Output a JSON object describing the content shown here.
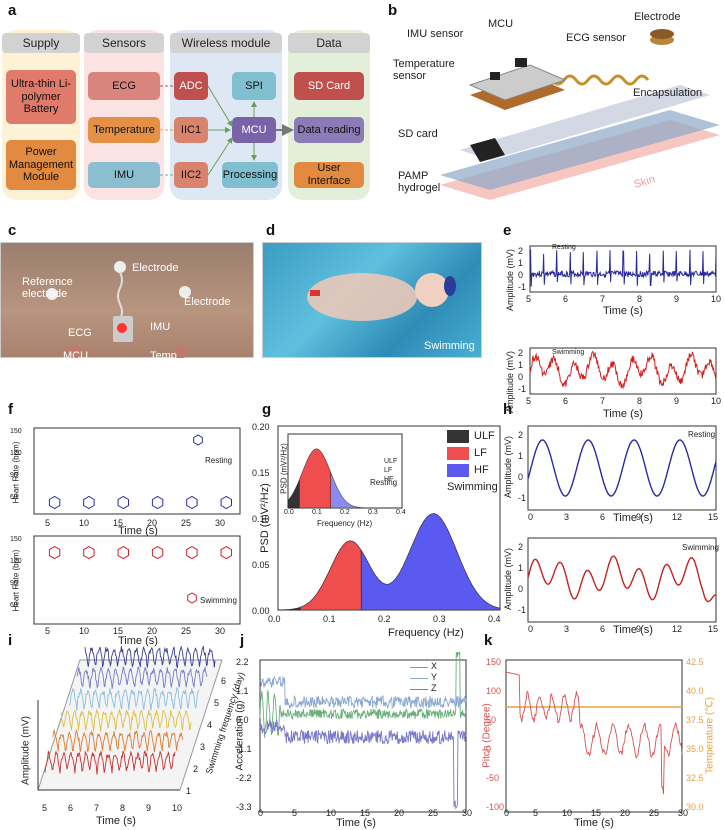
{
  "panels": {
    "a": "a",
    "b": "b",
    "c": "c",
    "d": "d",
    "e": "e",
    "f": "f",
    "g": "g",
    "h": "h",
    "i": "i",
    "j": "j",
    "k": "k"
  },
  "panel_a": {
    "columns": [
      "Supply",
      "Sensors",
      "Wireless module",
      "Data"
    ],
    "supply": [
      "Ultra-thin Li-polymer Battery",
      "Power Management Module"
    ],
    "sensors": [
      "ECG",
      "Temperature",
      "IMU"
    ],
    "wireless": [
      "ADC",
      "SPI",
      "IIC1",
      "MCU",
      "IIC2",
      "Processing"
    ],
    "data": [
      "SD Card",
      "Data reading",
      "User Interface"
    ]
  },
  "panel_b": {
    "labels": [
      "MCU",
      "Electrode",
      "IMU sensor",
      "ECG sensor",
      "Temperature sensor",
      "Encapsulation",
      "SD card",
      "PAMP hydrogel",
      "Skin"
    ]
  },
  "panel_c": {
    "labels": [
      "Electrode",
      "Reference electrode",
      "Electrode",
      "ECG",
      "IMU",
      "MCU",
      "Temp"
    ]
  },
  "panel_d": {
    "label": "Swimming"
  },
  "panel_e": {
    "xlabel": "Time (s)",
    "ylabel": "Amplitude (mV)",
    "legend_top": "Resting",
    "legend_bottom": "Swimming",
    "xticks": [
      "5",
      "6",
      "7",
      "8",
      "9",
      "10"
    ],
    "yticks": [
      "2",
      "1",
      "0",
      "-1"
    ],
    "colors": {
      "resting": "#2a2aa0",
      "swimming": "#d62020"
    }
  },
  "panel_f": {
    "xlabel": "Time (s)",
    "ylabel": "Heart Rate (bpm)",
    "legend_top": "Resting",
    "legend_bottom": "Swimming",
    "xticks": [
      "5",
      "10",
      "15",
      "20",
      "25",
      "30"
    ],
    "yticks_top": [
      "150",
      "120",
      "90",
      "60"
    ],
    "yticks_bottom": [
      "150",
      "120",
      "90",
      "60"
    ]
  },
  "panel_g": {
    "xlabel": "Frequency (Hz)",
    "ylabel": "PSD (mV²/Hz)",
    "legend": [
      "ULF",
      "LF",
      "HF"
    ],
    "title": "Swimming",
    "inset_title": "Resting",
    "inset_xlabel": "Frequency (Hz)",
    "inset_ylabel": "PSD (mV²/Hz)",
    "xticks": [
      "0.0",
      "0.1",
      "0.2",
      "0.3",
      "0.4"
    ],
    "yticks": [
      "0.20",
      "0.15",
      "0.10",
      "0.05",
      "0.00"
    ],
    "inset_xticks": [
      "0.0",
      "0.1",
      "0.2",
      "0.3",
      "0.4"
    ],
    "colors": {
      "ULF": "#333333",
      "LF": "#f04e4e",
      "HF": "#5a5af0"
    }
  },
  "panel_h": {
    "xlabel": "Time (s)",
    "ylabel": "Amplitude (mV)",
    "legend_top": "Resting",
    "legend_bottom": "Swimming",
    "xticks": [
      "0",
      "3",
      "6",
      "9",
      "12",
      "15"
    ],
    "yticks_top": [
      "2",
      "1",
      "0",
      "-1"
    ],
    "yticks_bottom": [
      "2",
      "1",
      "0",
      "-1"
    ]
  },
  "panel_i": {
    "xlabel": "Time (s)",
    "ylabel": "Amplitude (mV)",
    "zlabel": "Swimming frequency (day)",
    "xticks": [
      "5",
      "6",
      "7",
      "8",
      "9",
      "10"
    ],
    "zticks": [
      "1",
      "2",
      "3",
      "4",
      "5",
      "6"
    ]
  },
  "panel_j": {
    "xlabel": "Time (s)",
    "ylabel": "Acceleration (g)",
    "legend": [
      "X",
      "Y",
      "Z"
    ],
    "yticks": [
      "2.2",
      "1.1",
      "0.0",
      "-1.1",
      "-2.2",
      "-3.3"
    ],
    "xticks": [
      "0",
      "5",
      "10",
      "15",
      "20",
      "25",
      "30"
    ]
  },
  "panel_k": {
    "xlabel": "Time (s)",
    "ylabel_left": "Pitch (Degree)",
    "ylabel_right": "Temperature (℃)",
    "yticks_left": [
      "150",
      "100",
      "50",
      "0",
      "-50",
      "-100"
    ],
    "yticks_right": [
      "42.5",
      "40.0",
      "37.5",
      "35.0",
      "32.5",
      "30.0"
    ],
    "xticks": [
      "0",
      "5",
      "10",
      "15",
      "20",
      "25",
      "30"
    ]
  },
  "chart_data": [
    {
      "type": "scatter",
      "panel": "f-top",
      "series": [
        {
          "name": "Resting",
          "x": [
            5,
            10,
            15,
            20,
            25,
            30
          ],
          "values": [
            72,
            72,
            72,
            72,
            72,
            72
          ]
        }
      ],
      "ylim": [
        60,
        150
      ]
    },
    {
      "type": "scatter",
      "panel": "f-bottom",
      "series": [
        {
          "name": "Swimming",
          "x": [
            5,
            10,
            15,
            20,
            25,
            30
          ],
          "values": [
            133,
            133,
            133,
            133,
            133,
            133
          ]
        }
      ],
      "ylim": [
        60,
        150
      ]
    },
    {
      "type": "area",
      "panel": "g",
      "xlim": [
        0,
        0.4
      ],
      "ylim": [
        0,
        0.2
      ],
      "series": [
        {
          "name": "ULF",
          "x": [
            0,
            0.04
          ]
        },
        {
          "name": "LF",
          "x": [
            0.04,
            0.15
          ]
        },
        {
          "name": "HF",
          "x": [
            0.15,
            0.4
          ]
        }
      ]
    }
  ]
}
